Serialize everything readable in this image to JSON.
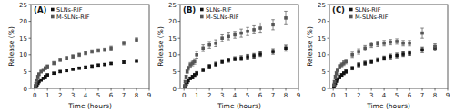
{
  "chart_data": [
    {
      "type": "scatter",
      "title": "(A)",
      "xlabel": "Time (hours)",
      "ylabel": "Release (%)",
      "x": [
        0.05,
        0.1,
        0.17,
        0.25,
        0.33,
        0.5,
        0.67,
        0.83,
        1.0,
        1.5,
        2.0,
        2.5,
        3.0,
        3.5,
        4.0,
        4.5,
        5.0,
        5.5,
        6.0,
        7.0,
        8.0
      ],
      "xlim": [
        -0.3,
        9
      ],
      "xticks": [
        0,
        1,
        2,
        3,
        4,
        5,
        6,
        7,
        8,
        9
      ],
      "ylim": [
        0,
        25
      ],
      "yticks": [
        0,
        5,
        10,
        15,
        20,
        25
      ],
      "legend": "upper left",
      "grid": false,
      "series": [
        {
          "name": "SLNs-RIF",
          "color": "#111111",
          "marker": "square",
          "values": [
            0.3,
            0.6,
            1.0,
            1.5,
            2.0,
            2.5,
            3.0,
            3.5,
            4.0,
            4.5,
            5.0,
            5.3,
            5.7,
            6.0,
            6.3,
            6.6,
            6.9,
            7.1,
            7.4,
            7.8,
            8.2
          ],
          "errors": [
            0.1,
            0.15,
            0.2,
            0.2,
            0.2,
            0.25,
            0.25,
            0.3,
            0.3,
            0.3,
            0.3,
            0.3,
            0.3,
            0.3,
            0.3,
            0.3,
            0.3,
            0.3,
            0.3,
            0.4,
            0.4
          ]
        },
        {
          "name": "M-SLNs-RIF",
          "color": "#555555",
          "marker": "square",
          "values": [
            0.8,
            1.5,
            2.5,
            3.5,
            4.2,
            5.0,
            5.5,
            6.0,
            6.5,
            7.5,
            8.5,
            9.0,
            9.5,
            10.0,
            10.5,
            11.0,
            11.3,
            11.5,
            12.0,
            13.5,
            14.5
          ],
          "errors": [
            0.2,
            0.25,
            0.3,
            0.35,
            0.4,
            0.4,
            0.4,
            0.45,
            0.5,
            0.5,
            0.5,
            0.5,
            0.5,
            0.5,
            0.5,
            0.5,
            0.5,
            0.5,
            0.6,
            0.6,
            0.6
          ]
        }
      ]
    },
    {
      "type": "scatter",
      "title": "(B)",
      "xlabel": "Time (hours)",
      "ylabel": "Release (%)",
      "x": [
        0.05,
        0.1,
        0.17,
        0.25,
        0.33,
        0.5,
        0.67,
        0.83,
        1.0,
        1.5,
        2.0,
        2.5,
        3.0,
        3.5,
        4.0,
        4.5,
        5.0,
        5.5,
        6.0,
        7.0,
        8.0
      ],
      "xlim": [
        -0.3,
        9
      ],
      "xticks": [
        0,
        1,
        2,
        3,
        4,
        5,
        6,
        7,
        8,
        9
      ],
      "ylim": [
        0,
        25
      ],
      "yticks": [
        0,
        5,
        10,
        15,
        20,
        25
      ],
      "legend": "upper left",
      "grid": false,
      "series": [
        {
          "name": "SLNs-RIF",
          "color": "#111111",
          "marker": "square",
          "values": [
            0.3,
            0.7,
            1.2,
            1.8,
            2.3,
            3.0,
            3.5,
            4.0,
            4.5,
            5.5,
            6.5,
            7.2,
            8.0,
            8.4,
            8.8,
            9.0,
            9.4,
            9.7,
            10.2,
            11.0,
            12.0
          ],
          "errors": [
            0.15,
            0.2,
            0.25,
            0.3,
            0.3,
            0.4,
            0.4,
            0.45,
            0.5,
            0.5,
            0.6,
            0.6,
            0.6,
            0.6,
            0.6,
            0.7,
            0.7,
            0.7,
            0.7,
            0.8,
            0.9
          ]
        },
        {
          "name": "M-SLNs-RIF",
          "color": "#555555",
          "marker": "square",
          "values": [
            0.8,
            2.0,
            3.5,
            5.0,
            6.0,
            7.0,
            7.5,
            8.0,
            10.0,
            12.0,
            13.0,
            13.5,
            15.0,
            15.5,
            16.0,
            16.5,
            17.0,
            17.5,
            18.0,
            19.0,
            21.0
          ],
          "errors": [
            0.2,
            0.3,
            0.4,
            0.5,
            0.6,
            0.7,
            0.8,
            0.8,
            1.0,
            1.0,
            1.0,
            1.0,
            1.0,
            1.0,
            1.0,
            1.2,
            1.2,
            1.2,
            1.5,
            1.5,
            2.0
          ]
        }
      ]
    },
    {
      "type": "scatter",
      "title": "(C)",
      "xlabel": "Time (hours)",
      "ylabel": "Release (%)",
      "x": [
        0.05,
        0.1,
        0.17,
        0.25,
        0.33,
        0.5,
        0.67,
        0.83,
        1.0,
        1.5,
        2.0,
        2.5,
        3.0,
        3.5,
        4.0,
        4.5,
        5.0,
        5.5,
        6.0,
        7.0,
        8.0
      ],
      "xlim": [
        -0.3,
        9
      ],
      "xticks": [
        0,
        1,
        2,
        3,
        4,
        5,
        6,
        7,
        8,
        9
      ],
      "ylim": [
        0,
        25
      ],
      "yticks": [
        0,
        5,
        10,
        15,
        20,
        25
      ],
      "legend": "upper left",
      "grid": false,
      "series": [
        {
          "name": "SLNs-RIF",
          "color": "#111111",
          "marker": "square",
          "values": [
            0.5,
            1.0,
            1.5,
            2.2,
            2.8,
            3.5,
            4.0,
            4.5,
            5.0,
            6.0,
            7.0,
            7.5,
            8.0,
            8.5,
            9.0,
            9.5,
            9.8,
            10.2,
            10.5,
            11.5,
            12.0
          ],
          "errors": [
            0.15,
            0.2,
            0.25,
            0.3,
            0.3,
            0.35,
            0.4,
            0.45,
            0.5,
            0.5,
            0.6,
            0.6,
            0.6,
            0.6,
            0.6,
            0.7,
            0.7,
            0.7,
            0.7,
            0.8,
            0.8
          ]
        },
        {
          "name": "M-SLNs-RIF",
          "color": "#555555",
          "marker": "square",
          "values": [
            1.0,
            2.0,
            3.5,
            4.5,
            5.5,
            6.5,
            7.0,
            7.5,
            8.0,
            10.0,
            11.0,
            12.0,
            13.0,
            13.3,
            13.5,
            13.8,
            14.0,
            13.5,
            13.5,
            16.5,
            12.5
          ],
          "errors": [
            0.2,
            0.3,
            0.4,
            0.5,
            0.5,
            0.6,
            0.6,
            0.7,
            0.7,
            0.8,
            0.8,
            0.8,
            0.8,
            0.8,
            0.8,
            0.8,
            0.8,
            0.8,
            0.8,
            1.5,
            0.8
          ]
        }
      ]
    }
  ]
}
